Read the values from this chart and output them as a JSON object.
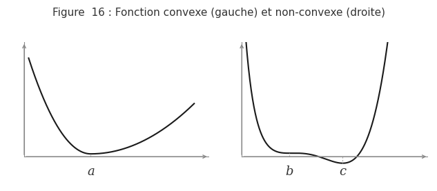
{
  "title": "Figure  16 : Fonction convexe (gauche) et non-convexe (droite)",
  "title_fontsize": 11,
  "title_color": "#333333",
  "background_color": "#ffffff",
  "curve_color": "#1a1a1a",
  "curve_linewidth": 1.5,
  "axis_color": "#888888",
  "dotted_color": "#aaaaaa",
  "label_a": "a",
  "label_b": "b",
  "label_c": "c",
  "label_fontsize": 13,
  "left_xlim": [
    -0.3,
    5.0
  ],
  "left_ylim": [
    -0.5,
    5.0
  ],
  "right_xlim": [
    -0.3,
    6.0
  ],
  "right_ylim": [
    -0.5,
    5.0
  ]
}
